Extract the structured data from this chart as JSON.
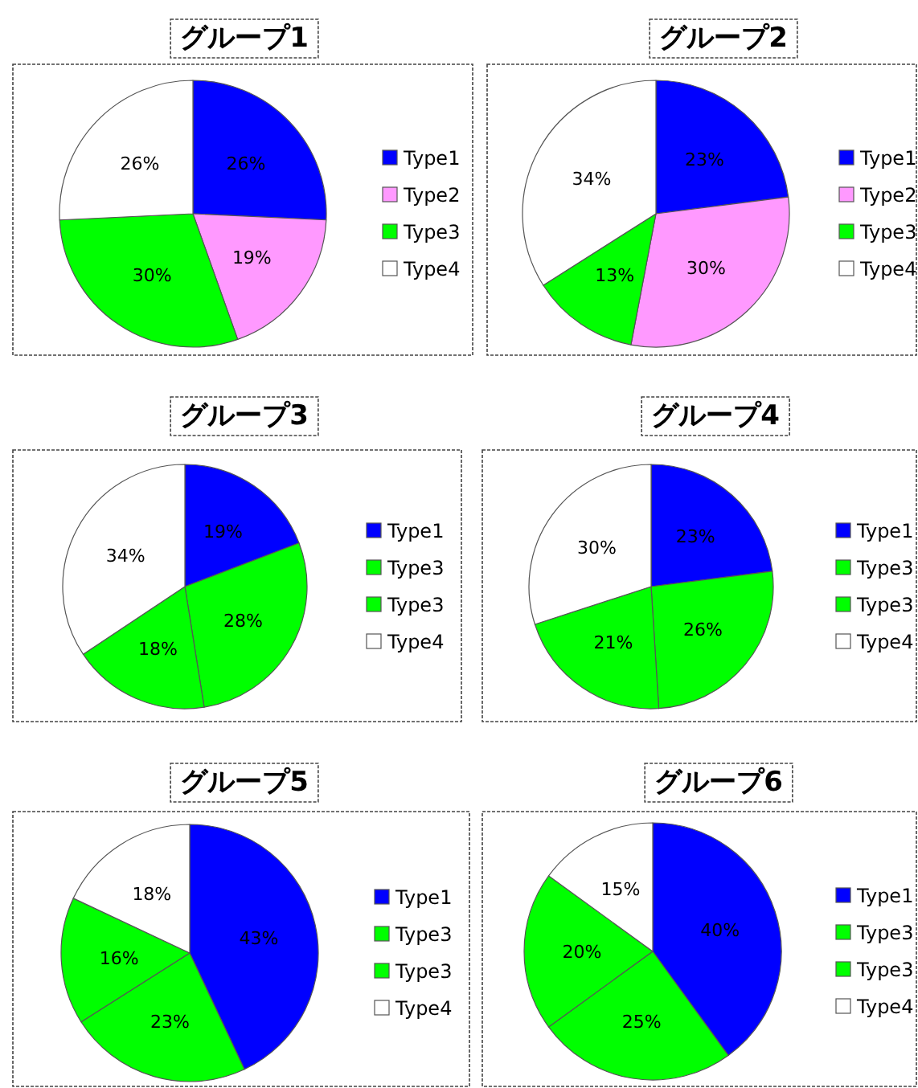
{
  "chart_data": [
    {
      "type": "pie",
      "title": "グループ1",
      "categories": [
        "Type1",
        "Type2",
        "Type3",
        "Type4"
      ],
      "values": [
        26,
        19,
        30,
        26
      ],
      "value_labels": [
        "26%",
        "19%",
        "30%",
        "26%"
      ],
      "colors": [
        "#0000ff",
        "#ff99ff",
        "#00ff00",
        "#ffffff"
      ],
      "legend": "right"
    },
    {
      "type": "pie",
      "title": "グループ2",
      "categories": [
        "Type1",
        "Type2",
        "Type3",
        "Type4"
      ],
      "values": [
        23,
        30,
        13,
        34
      ],
      "value_labels": [
        "23%",
        "30%",
        "13%",
        "34%"
      ],
      "colors": [
        "#0000ff",
        "#ff99ff",
        "#00ff00",
        "#ffffff"
      ],
      "legend": "right"
    },
    {
      "type": "pie",
      "title": "グループ3",
      "categories": [
        "Type1",
        "Type3",
        "Type3",
        "Type4"
      ],
      "values": [
        19,
        28,
        18,
        34
      ],
      "value_labels": [
        "19%",
        "28%",
        "18%",
        "34%"
      ],
      "colors": [
        "#0000ff",
        "#00ff00",
        "#00ff00",
        "#ffffff"
      ],
      "legend": "right"
    },
    {
      "type": "pie",
      "title": "グループ4",
      "categories": [
        "Type1",
        "Type3",
        "Type3",
        "Type4"
      ],
      "values": [
        23,
        26,
        21,
        30
      ],
      "value_labels": [
        "23%",
        "26%",
        "21%",
        "30%"
      ],
      "colors": [
        "#0000ff",
        "#00ff00",
        "#00ff00",
        "#ffffff"
      ],
      "legend": "right"
    },
    {
      "type": "pie",
      "title": "グループ5",
      "categories": [
        "Type1",
        "Type3",
        "Type3",
        "Type4"
      ],
      "values": [
        43,
        23,
        16,
        18
      ],
      "value_labels": [
        "43%",
        "23%",
        "16%",
        "18%"
      ],
      "colors": [
        "#0000ff",
        "#00ff00",
        "#00ff00",
        "#ffffff"
      ],
      "legend": "right"
    },
    {
      "type": "pie",
      "title": "グループ6",
      "categories": [
        "Type1",
        "Type3",
        "Type3",
        "Type4"
      ],
      "values": [
        40,
        25,
        20,
        15
      ],
      "value_labels": [
        "40%",
        "25%",
        "20%",
        "15%"
      ],
      "colors": [
        "#0000ff",
        "#00ff00",
        "#00ff00",
        "#ffffff"
      ],
      "legend": "right"
    }
  ]
}
